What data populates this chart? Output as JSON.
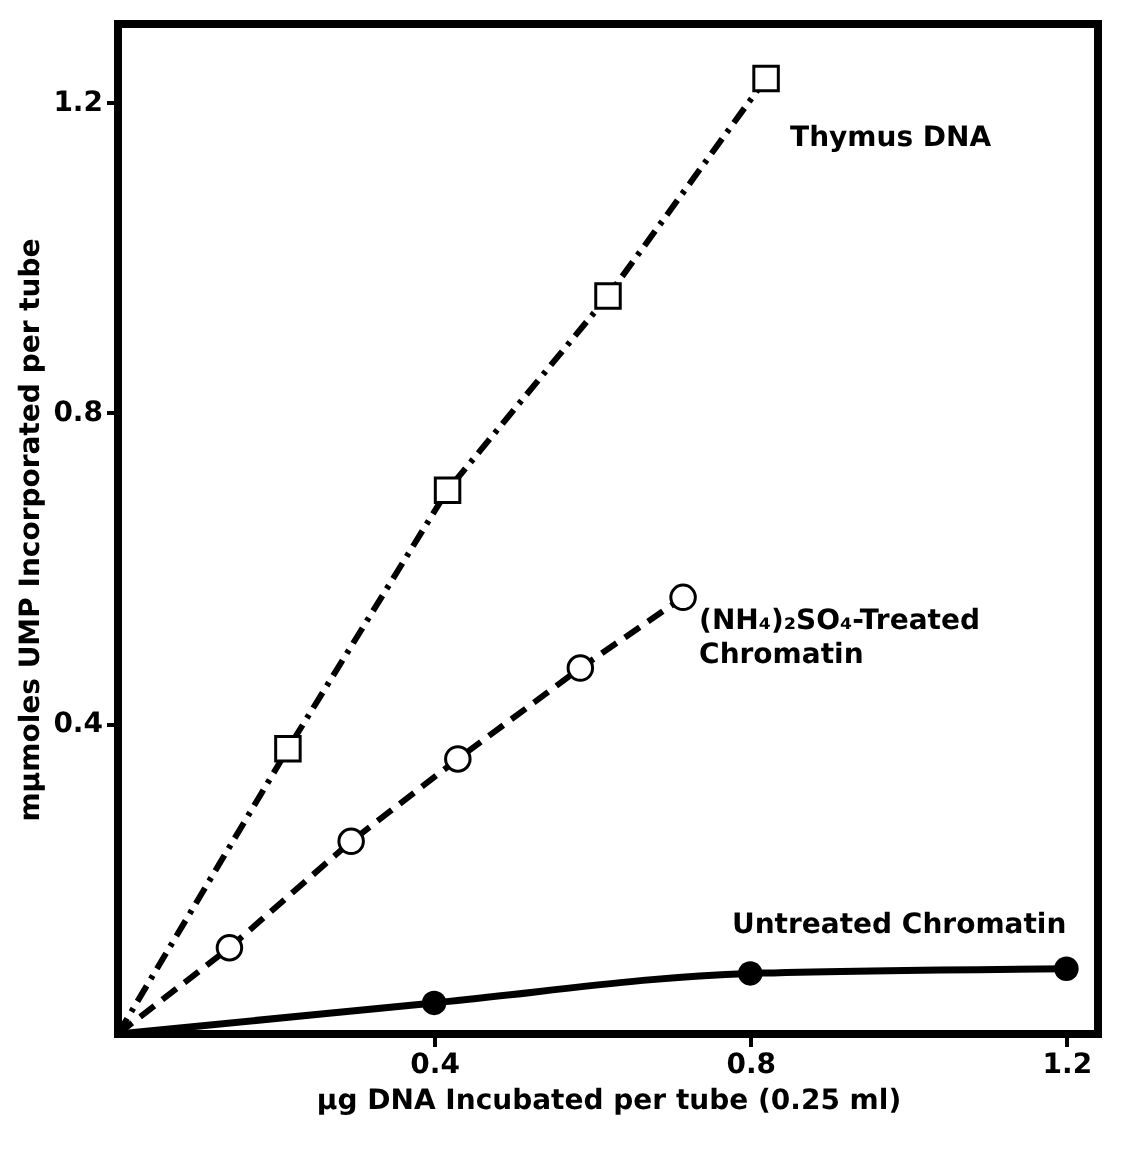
{
  "chart_data": {
    "type": "line",
    "xlabel": "μg DNA Incubated per tube (0.25 ml)",
    "ylabel": "mμmoles UMP Incorporated per tube",
    "xlim": [
      0,
      1.24
    ],
    "ylim": [
      0,
      1.3
    ],
    "xticks": [
      0.4,
      0.8,
      1.2
    ],
    "yticks": [
      0.4,
      0.8,
      1.2
    ],
    "grid": false,
    "legend": false,
    "series": [
      {
        "name": "Thymus DNA",
        "color": "#000000",
        "x": [
          0,
          0.215,
          0.417,
          0.62,
          0.82
        ],
        "values": [
          0,
          0.367,
          0.7,
          0.95,
          1.23
        ],
        "marker": "square",
        "line_style": "dashdot"
      },
      {
        "name": "(NH₄)₂SO₄-Treated Chromatin",
        "color": "#000000",
        "x": [
          0,
          0.141,
          0.295,
          0.43,
          0.585,
          0.715
        ],
        "values": [
          0,
          0.111,
          0.248,
          0.354,
          0.471,
          0.562
        ],
        "marker": "circle",
        "line_style": "dashed"
      },
      {
        "name": "Untreated Chromatin",
        "color": "#000000",
        "x": [
          0,
          0.4,
          0.8,
          1.2
        ],
        "values": [
          0,
          0.04,
          0.078,
          0.084
        ],
        "marker": "circle",
        "line_style": "solid"
      }
    ]
  }
}
